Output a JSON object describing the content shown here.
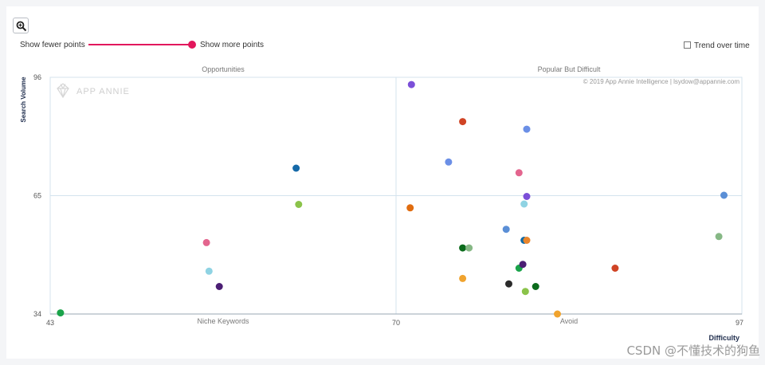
{
  "controls": {
    "show_fewer_label": "Show fewer points",
    "show_more_label": "Show more points",
    "trend_label": "Trend over time",
    "slider_level": 1.0,
    "trend_checked": false
  },
  "brand": {
    "logo_text": "APP ANNIE",
    "copyright": "© 2019 App Annie Intelligence | lsydow@appannie.com"
  },
  "watermark": "CSDN @不懂技术的狗鱼",
  "colors": {
    "accent": "#e2175c",
    "gridline": "#d4e3ee"
  },
  "chart_data": {
    "type": "scatter",
    "xlabel": "Difficulty",
    "ylabel": "Search Volume",
    "xlim": [
      43,
      97
    ],
    "ylim": [
      34,
      96
    ],
    "x_ticks": [
      "43",
      "70",
      "97"
    ],
    "y_ticks": [
      "34",
      "65",
      "96"
    ],
    "quadrant_labels": {
      "top_left": "Opportunities",
      "top_right": "Popular But Difficult",
      "bottom_left": "Niche Keywords",
      "bottom_right": "Avoid"
    },
    "points": [
      {
        "x": 43.8,
        "y": 34.3,
        "color": "#1aa34a"
      },
      {
        "x": 55.2,
        "y": 52.7,
        "color": "#e3658e"
      },
      {
        "x": 55.4,
        "y": 45.2,
        "color": "#8fd3e3"
      },
      {
        "x": 56.2,
        "y": 41.2,
        "color": "#4b1e74"
      },
      {
        "x": 62.2,
        "y": 72.2,
        "color": "#1569a8"
      },
      {
        "x": 62.4,
        "y": 62.7,
        "color": "#8bc34a"
      },
      {
        "x": 71.2,
        "y": 94.1,
        "color": "#7b4fd8"
      },
      {
        "x": 71.1,
        "y": 61.8,
        "color": "#e06c0f"
      },
      {
        "x": 74.1,
        "y": 73.8,
        "color": "#6b8fe6"
      },
      {
        "x": 75.2,
        "y": 84.4,
        "color": "#d04425"
      },
      {
        "x": 75.2,
        "y": 51.3,
        "color": "#0b6b1c"
      },
      {
        "x": 75.2,
        "y": 43.3,
        "color": "#f0a32e"
      },
      {
        "x": 75.7,
        "y": 51.3,
        "color": "#86b885"
      },
      {
        "x": 78.6,
        "y": 56.2,
        "color": "#5b8fd6"
      },
      {
        "x": 78.8,
        "y": 41.9,
        "color": "#2b2b2b"
      },
      {
        "x": 79.6,
        "y": 71.0,
        "color": "#e3658e"
      },
      {
        "x": 79.6,
        "y": 46.0,
        "color": "#1aa34a"
      },
      {
        "x": 79.9,
        "y": 47.0,
        "color": "#4b1e74"
      },
      {
        "x": 80.0,
        "y": 62.8,
        "color": "#8fd3e3"
      },
      {
        "x": 80.0,
        "y": 53.3,
        "color": "#0e6aa6"
      },
      {
        "x": 80.2,
        "y": 53.3,
        "color": "#e9852b"
      },
      {
        "x": 80.1,
        "y": 39.9,
        "color": "#8bc34a"
      },
      {
        "x": 80.2,
        "y": 82.4,
        "color": "#6b8fe6"
      },
      {
        "x": 80.2,
        "y": 64.8,
        "color": "#7b4fd8"
      },
      {
        "x": 80.9,
        "y": 41.2,
        "color": "#0b6b1c"
      },
      {
        "x": 82.6,
        "y": 34.0,
        "color": "#f0a32e"
      },
      {
        "x": 87.1,
        "y": 46.0,
        "color": "#d04425"
      },
      {
        "x": 95.2,
        "y": 54.3,
        "color": "#86b885"
      },
      {
        "x": 95.6,
        "y": 65.1,
        "color": "#5b8fd6"
      }
    ]
  }
}
